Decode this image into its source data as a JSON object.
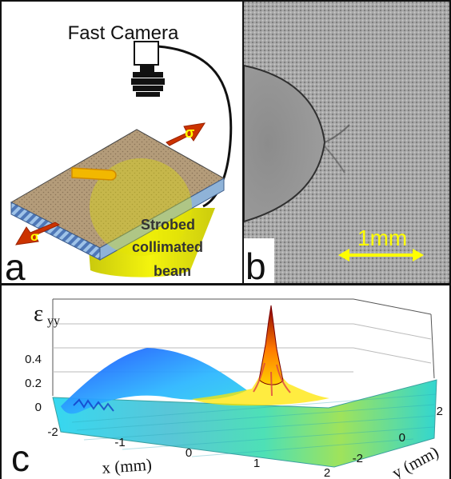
{
  "panel_a": {
    "letter": "a",
    "camera_label": "Fast Camera",
    "stress_label_top": "σ",
    "stress_label_bottom": "σ",
    "beam_label_line1": "Strobed",
    "beam_label_line2": "collimated",
    "beam_label_line3": "beam"
  },
  "panel_b": {
    "letter": "b",
    "scale_label": "1mm"
  },
  "panel_c": {
    "letter": "c",
    "z_label": "ε",
    "z_label_sub": "yy",
    "z_ticks": [
      "0.4",
      "0.2",
      "0"
    ],
    "x_ticks": [
      "-2",
      "-1",
      "0",
      "1",
      "2"
    ],
    "y_ticks": [
      "2",
      "0",
      "-2"
    ],
    "x_label": "x (mm)",
    "y_label": "y (mm)"
  },
  "colors": {
    "camera_body": "#ffffff",
    "lens": "#111111",
    "beam_yellow": "#e6e600",
    "arrow_red": "#cc3300",
    "crack_yellow": "#f2b800",
    "plate_top": "#b49c7a",
    "plate_edge": "#8fb3d8",
    "scale_yellow": "#ffff00",
    "surface_low": "#1f5fff",
    "surface_mid": "#48e0c8",
    "surface_high": "#ff7a00",
    "peak": "#8b0000"
  }
}
